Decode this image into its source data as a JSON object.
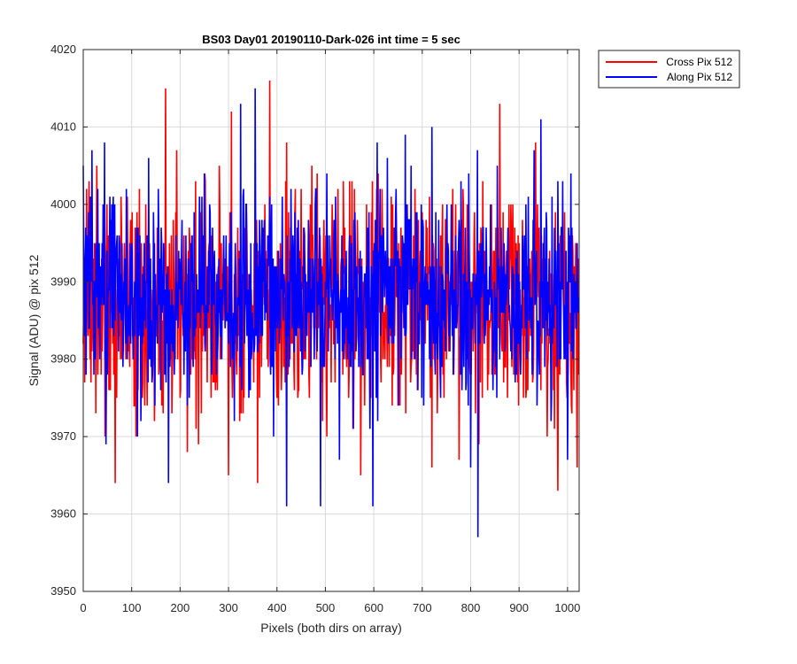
{
  "chart_data": {
    "type": "line",
    "title": "BS03 Day01 20190110-Dark-026 int time = 5 sec",
    "xlabel": "Pixels (both dirs on array)",
    "ylabel": "Signal (ADU) @ pix 512",
    "xlim": [
      0,
      1024
    ],
    "ylim": [
      3950,
      4020
    ],
    "xticks": [
      0,
      100,
      200,
      300,
      400,
      500,
      600,
      700,
      800,
      900,
      1000
    ],
    "yticks": [
      3950,
      3960,
      3970,
      3980,
      3990,
      4000,
      4010,
      4020
    ],
    "grid": true,
    "legend_position": "outside-top-right",
    "series": [
      {
        "name": "Cross Pix 512",
        "color": "#ff0000",
        "mean": 3987,
        "sd": 7,
        "n": 1024,
        "seed": 1337,
        "peaks": [
          [
            66,
            3964
          ],
          [
            170,
            4015
          ],
          [
            215,
            3968
          ],
          [
            232,
            4003
          ],
          [
            300,
            3965
          ],
          [
            306,
            4012
          ],
          [
            360,
            3964
          ],
          [
            385,
            4016
          ],
          [
            400,
            3975
          ],
          [
            450,
            4002
          ],
          [
            520,
            3977
          ],
          [
            555,
            4003
          ],
          [
            650,
            3974
          ],
          [
            720,
            3966
          ],
          [
            810,
            3973
          ],
          [
            860,
            4013
          ],
          [
            930,
            3981
          ],
          [
            980,
            3963
          ],
          [
            1020,
            3966
          ]
        ]
      },
      {
        "name": "Along Pix 512",
        "color": "#0000ff",
        "mean": 3988,
        "sd": 6.5,
        "n": 1024,
        "seed": 4242,
        "peaks": [
          [
            0,
            4005
          ],
          [
            18,
            4007
          ],
          [
            44,
            4008
          ],
          [
            112,
            3970
          ],
          [
            135,
            4006
          ],
          [
            176,
            3964
          ],
          [
            250,
            4004
          ],
          [
            325,
            4013
          ],
          [
            355,
            4015
          ],
          [
            420,
            3961
          ],
          [
            490,
            3961
          ],
          [
            598,
            3961
          ],
          [
            607,
            4008
          ],
          [
            665,
            4009
          ],
          [
            720,
            4010
          ],
          [
            780,
            4003
          ],
          [
            800,
            3966
          ],
          [
            815,
            3957
          ],
          [
            945,
            4011
          ],
          [
            1000,
            3967
          ]
        ]
      }
    ]
  }
}
